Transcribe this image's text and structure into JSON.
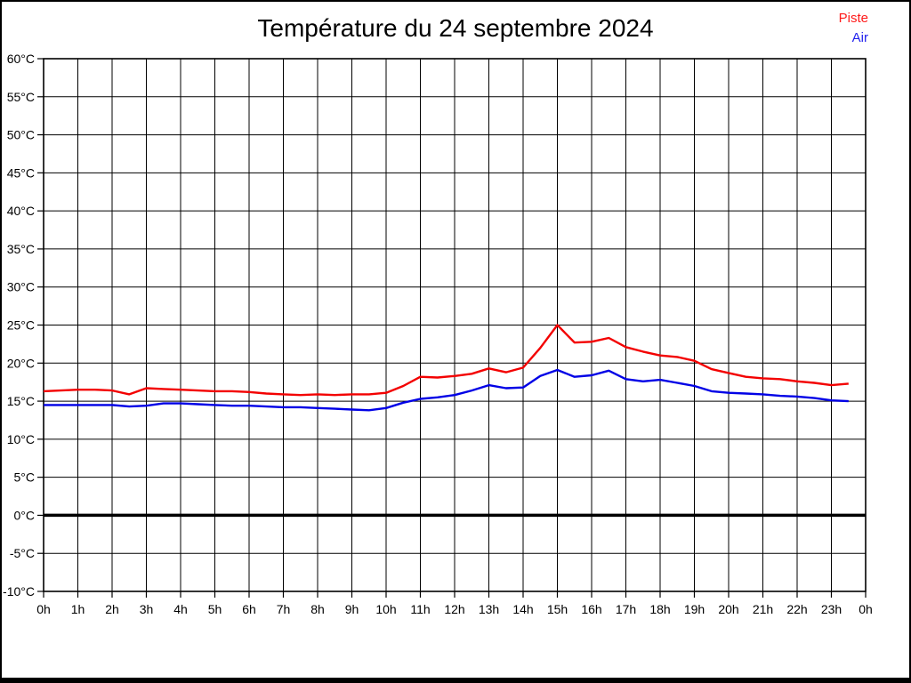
{
  "title": "Température du 24 septembre 2024",
  "legend": {
    "items": [
      {
        "label": "Piste",
        "color": "#ff1a1a"
      },
      {
        "label": "Air",
        "color": "#2222ee"
      }
    ]
  },
  "colors": {
    "background": "#ffffff",
    "grid": "#000000",
    "frame": "#000000",
    "zero_line": "#000000",
    "piste_line": "#f30000",
    "air_line": "#0000e6"
  },
  "chart_data": {
    "type": "line",
    "title": "Température du 24 septembre 2024",
    "xlabel": "",
    "ylabel": "",
    "xlim": [
      0,
      24
    ],
    "ylim": [
      -10,
      60
    ],
    "y_step": 5,
    "x_step": 1,
    "grid": true,
    "zero_line_at": 0,
    "legend_position": "top-right",
    "x_tick_labels": [
      "0h",
      "1h",
      "2h",
      "3h",
      "4h",
      "5h",
      "6h",
      "7h",
      "8h",
      "9h",
      "10h",
      "11h",
      "12h",
      "13h",
      "14h",
      "15h",
      "16h",
      "17h",
      "18h",
      "19h",
      "20h",
      "21h",
      "22h",
      "23h",
      "0h"
    ],
    "y_tick_labels": [
      "60°C",
      "55°C",
      "50°C",
      "45°C",
      "40°C",
      "35°C",
      "30°C",
      "25°C",
      "20°C",
      "15°C",
      "10°C",
      "5°C",
      "0°C",
      "-5°C",
      "-10°C"
    ],
    "x": [
      0,
      0.5,
      1,
      1.5,
      2,
      2.5,
      3,
      3.5,
      4,
      4.5,
      5,
      5.5,
      6,
      6.5,
      7,
      7.5,
      8,
      8.5,
      9,
      9.5,
      10,
      10.5,
      11,
      11.5,
      12,
      12.5,
      13,
      13.5,
      14,
      14.5,
      15,
      15.5,
      16,
      16.5,
      17,
      17.5,
      18,
      18.5,
      19,
      19.5,
      20,
      20.5,
      21,
      21.5,
      22,
      22.5,
      23,
      23.5
    ],
    "series": [
      {
        "name": "Piste",
        "color": "#f30000",
        "unit": "°C",
        "values": [
          16.3,
          16.4,
          16.5,
          16.5,
          16.4,
          15.9,
          16.7,
          16.6,
          16.5,
          16.4,
          16.3,
          16.3,
          16.2,
          16.0,
          15.9,
          15.8,
          15.9,
          15.8,
          15.9,
          15.9,
          16.1,
          17.0,
          18.2,
          18.1,
          18.3,
          18.6,
          19.3,
          18.8,
          19.4,
          22.0,
          25.0,
          22.7,
          22.8,
          23.3,
          22.1,
          21.5,
          21.0,
          20.8,
          20.3,
          19.2,
          18.7,
          18.2,
          18.0,
          17.9,
          17.6,
          17.4,
          17.1,
          17.3
        ]
      },
      {
        "name": "Air",
        "color": "#0000e6",
        "unit": "°C",
        "values": [
          14.5,
          14.5,
          14.5,
          14.5,
          14.5,
          14.3,
          14.4,
          14.7,
          14.7,
          14.6,
          14.5,
          14.4,
          14.4,
          14.3,
          14.2,
          14.2,
          14.1,
          14.0,
          13.9,
          13.8,
          14.1,
          14.8,
          15.3,
          15.5,
          15.8,
          16.4,
          17.1,
          16.7,
          16.8,
          18.3,
          19.1,
          18.2,
          18.4,
          19.0,
          17.9,
          17.6,
          17.8,
          17.4,
          17.0,
          16.3,
          16.1,
          16.0,
          15.9,
          15.7,
          15.6,
          15.4,
          15.1,
          15.0
        ]
      }
    ]
  }
}
